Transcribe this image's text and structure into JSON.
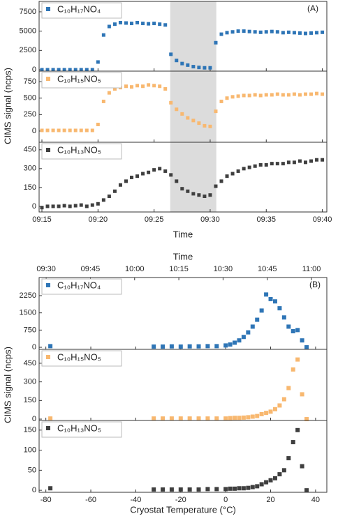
{
  "chart_data": [
    {
      "type": "scatter",
      "panel_label": "(A)",
      "ylabel": "CIMS signal (ncps)",
      "xlabel": "Time",
      "x": [
        555,
        555.5,
        556,
        556.5,
        557,
        557.5,
        558,
        558.5,
        559,
        559.5,
        560,
        560.5,
        561,
        561.5,
        562,
        562.5,
        563,
        563.5,
        564,
        564.5,
        565,
        565.5,
        566,
        566.5,
        567,
        567.5,
        568,
        568.5,
        569,
        569.5,
        570,
        570.5,
        571,
        571.5,
        572,
        572.5,
        573,
        573.5,
        574,
        574.5,
        575,
        575.5,
        576,
        576.5,
        577,
        577.5,
        578,
        578.5,
        579,
        579.5,
        580
      ],
      "xlim": [
        554.75,
        580.4
      ],
      "xticks": [
        {
          "value": 555,
          "label": "09:15"
        },
        {
          "value": 560,
          "label": "09:20"
        },
        {
          "value": 565,
          "label": "09:25"
        },
        {
          "value": 570,
          "label": "09:30"
        },
        {
          "value": 575,
          "label": "09:35"
        },
        {
          "value": 580,
          "label": "09:40"
        }
      ],
      "shaded_x": [
        566.44,
        570.55
      ],
      "series": [
        {
          "name": "C₁₀H₁₇NO₄",
          "color": "#2e75b6",
          "ylim": [
            -180,
            8850
          ],
          "yticks": [
            0,
            2500,
            5000,
            7500
          ],
          "values": [
            0,
            0,
            0,
            0,
            0,
            0,
            0,
            0,
            0,
            0,
            1000,
            4500,
            5600,
            5900,
            6100,
            6050,
            6000,
            6100,
            6000,
            5950,
            6000,
            5900,
            5800,
            2000,
            1200,
            800,
            600,
            400,
            300,
            250,
            250,
            3500,
            4600,
            4800,
            4900,
            5000,
            5000,
            4950,
            4900,
            4850,
            4900,
            4950,
            4900,
            4800,
            4850,
            4800,
            4750,
            4700,
            4750,
            4800,
            4850
          ]
        },
        {
          "name": "C₁₀H₁₅NO₅",
          "color": "#f8b870",
          "ylim": [
            -170,
            910
          ],
          "yticks": [
            0,
            250,
            500,
            750
          ],
          "values": [
            10,
            10,
            10,
            10,
            10,
            10,
            10,
            10,
            10,
            10,
            100,
            450,
            580,
            640,
            660,
            680,
            670,
            690,
            680,
            700,
            690,
            680,
            640,
            430,
            330,
            260,
            200,
            160,
            120,
            80,
            70,
            300,
            450,
            500,
            520,
            530,
            540,
            540,
            550,
            540,
            550,
            550,
            560,
            550,
            550,
            560,
            550,
            560,
            560,
            570,
            560
          ]
        },
        {
          "name": "C₁₀H₁₃NO₅",
          "color": "#3f3f3f",
          "ylim": [
            -45,
            510
          ],
          "yticks": [
            0,
            150,
            300,
            450
          ],
          "values": [
            -10,
            0,
            0,
            0,
            5,
            0,
            5,
            10,
            0,
            10,
            20,
            50,
            80,
            120,
            170,
            200,
            230,
            240,
            260,
            270,
            290,
            300,
            280,
            250,
            200,
            140,
            120,
            100,
            90,
            80,
            90,
            160,
            200,
            240,
            260,
            280,
            300,
            310,
            320,
            330,
            330,
            340,
            340,
            340,
            350,
            350,
            360,
            350,
            360,
            370,
            370
          ]
        }
      ]
    },
    {
      "type": "scatter",
      "panel_label": "(B)",
      "ylabel": "CIMS signal (ncps)",
      "xlabel": "Cryostat Temperature (°C)",
      "x2label": "Time",
      "x": [
        -78,
        -32,
        -28,
        -24,
        -20,
        -16,
        -12,
        -8,
        -4,
        0,
        2,
        4,
        6,
        8,
        10,
        12,
        14,
        16,
        18,
        20,
        22,
        24,
        26,
        28,
        30,
        32,
        34,
        36
      ],
      "xlim": [
        -83,
        45
      ],
      "xticks": [
        -80,
        -60,
        -40,
        -20,
        0,
        20,
        40
      ],
      "x2lim": [
        567.6,
        665.2
      ],
      "x2ticks": [
        {
          "value": 570,
          "label": "09:30"
        },
        {
          "value": 585,
          "label": "09:45"
        },
        {
          "value": 600,
          "label": "10:00"
        },
        {
          "value": 615,
          "label": "10:15"
        },
        {
          "value": 630,
          "label": "10:30"
        },
        {
          "value": 645,
          "label": "10:45"
        },
        {
          "value": 660,
          "label": "11:00"
        }
      ],
      "series": [
        {
          "name": "C₁₀H₁₇NO₄",
          "color": "#2e75b6",
          "ylim": [
            -90,
            3040
          ],
          "yticks": [
            0,
            750,
            1500,
            2250
          ],
          "values": [
            50,
            30,
            30,
            40,
            30,
            40,
            40,
            50,
            50,
            80,
            120,
            200,
            300,
            450,
            650,
            900,
            1200,
            1600,
            2300,
            2100,
            2000,
            1700,
            1300,
            900,
            700,
            750,
            300,
            0
          ]
        },
        {
          "name": "C₁₀H₁₅NO₅",
          "color": "#f8b870",
          "ylim": [
            -11,
            562
          ],
          "yticks": [
            0,
            150,
            300,
            450
          ],
          "values": [
            5,
            5,
            5,
            5,
            5,
            5,
            5,
            5,
            5,
            5,
            8,
            10,
            10,
            12,
            15,
            20,
            25,
            40,
            50,
            60,
            80,
            110,
            160,
            250,
            400,
            480,
            200,
            0
          ]
        },
        {
          "name": "C₁₀H₁₃NO₅",
          "color": "#3f3f3f",
          "ylim": [
            -5,
            174
          ],
          "yticks": [
            0,
            50,
            100,
            150
          ],
          "values": [
            5,
            2,
            2,
            2,
            2,
            2,
            2,
            3,
            3,
            3,
            4,
            4,
            5,
            5,
            6,
            8,
            10,
            15,
            20,
            25,
            30,
            40,
            50,
            80,
            120,
            150,
            60,
            0
          ]
        }
      ]
    }
  ]
}
